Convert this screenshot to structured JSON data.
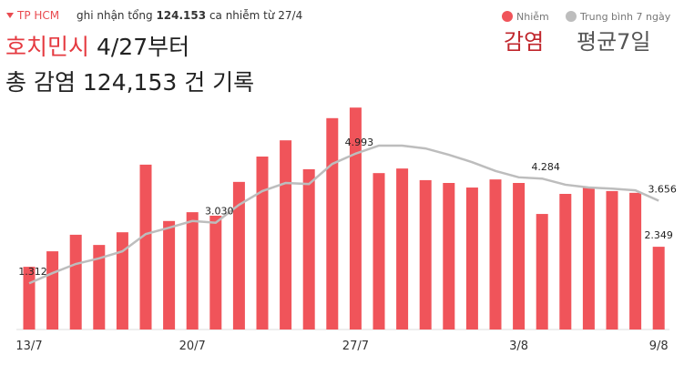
{
  "header": {
    "place": "TP HCM",
    "text_before": "ghi nhận tổng",
    "total": "124.153",
    "text_after": "ca nhiễm từ 27/4"
  },
  "overlay": {
    "city": "호치민시",
    "since": "4/27부터",
    "total_line": "총 감염 124,153 건 기록",
    "infected": "감염",
    "average": "평균7일"
  },
  "chart_data": {
    "type": "bar",
    "categories": [
      "13/7",
      null,
      null,
      null,
      null,
      null,
      null,
      "20/7",
      null,
      null,
      null,
      null,
      null,
      null,
      "27/7",
      null,
      null,
      null,
      null,
      null,
      null,
      "3/8",
      null,
      null,
      null,
      null,
      null,
      "9/8"
    ],
    "series": [
      {
        "name": "Nhiễm",
        "color": "#f0545a",
        "values": [
          1780,
          2220,
          2690,
          2400,
          2760,
          4680,
          3080,
          3330,
          3230,
          4190,
          4910,
          5370,
          4550,
          6000,
          6300,
          4440,
          4570,
          4240,
          4160,
          4030,
          4260,
          4160,
          3280,
          3850,
          4030,
          3930,
          3880,
          2349
        ],
        "value_labels": [
          null,
          null,
          null,
          null,
          null,
          null,
          null,
          null,
          null,
          null,
          null,
          null,
          null,
          null,
          null,
          null,
          null,
          null,
          null,
          null,
          null,
          null,
          null,
          null,
          null,
          null,
          null,
          "2.349"
        ]
      },
      {
        "name": "Trung bình 7 ngày",
        "type": "line",
        "color": "#bdbdbd",
        "values": [
          1312,
          1600,
          1860,
          2020,
          2220,
          2710,
          2890,
          3080,
          3030,
          3540,
          3930,
          4160,
          4130,
          4700,
          4993,
          5220,
          5220,
          5140,
          4960,
          4750,
          4500,
          4320,
          4284,
          4110,
          4030,
          4000,
          3950,
          3656
        ],
        "value_labels": [
          "1.312",
          null,
          null,
          null,
          null,
          null,
          null,
          null,
          "3.030",
          null,
          null,
          null,
          null,
          null,
          "4.993",
          null,
          null,
          null,
          null,
          null,
          null,
          null,
          "4.284",
          null,
          null,
          null,
          null,
          "3.656"
        ]
      }
    ]
  }
}
